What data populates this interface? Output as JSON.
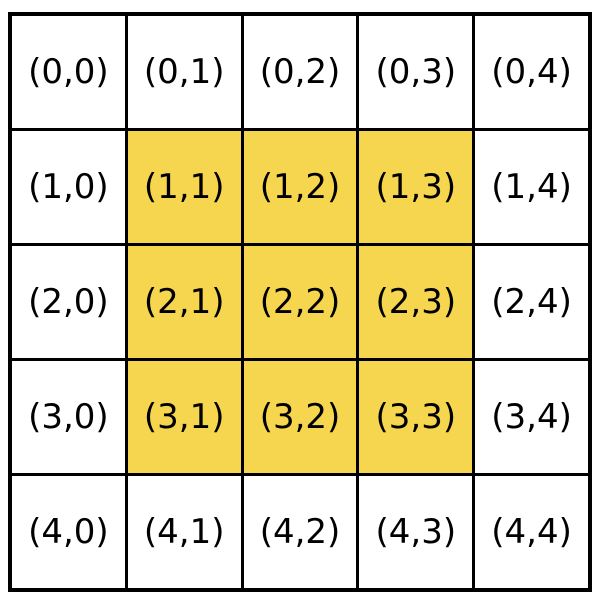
{
  "figure": {
    "description": "5x5 coordinate grid with inner 3x3 block highlighted",
    "rows": 5,
    "cols": 5
  },
  "colors": {
    "highlight": "#F6D54F",
    "cell_background": "#FFFFFF",
    "border": "#000000",
    "text": "#000000"
  },
  "grid": {
    "cells": [
      {
        "label": "(0,0)",
        "row": 0,
        "col": 0,
        "highlighted": false
      },
      {
        "label": "(0,1)",
        "row": 0,
        "col": 1,
        "highlighted": false
      },
      {
        "label": "(0,2)",
        "row": 0,
        "col": 2,
        "highlighted": false
      },
      {
        "label": "(0,3)",
        "row": 0,
        "col": 3,
        "highlighted": false
      },
      {
        "label": "(0,4)",
        "row": 0,
        "col": 4,
        "highlighted": false
      },
      {
        "label": "(1,0)",
        "row": 1,
        "col": 0,
        "highlighted": false
      },
      {
        "label": "(1,1)",
        "row": 1,
        "col": 1,
        "highlighted": true
      },
      {
        "label": "(1,2)",
        "row": 1,
        "col": 2,
        "highlighted": true
      },
      {
        "label": "(1,3)",
        "row": 1,
        "col": 3,
        "highlighted": true
      },
      {
        "label": "(1,4)",
        "row": 1,
        "col": 4,
        "highlighted": false
      },
      {
        "label": "(2,0)",
        "row": 2,
        "col": 0,
        "highlighted": false
      },
      {
        "label": "(2,1)",
        "row": 2,
        "col": 1,
        "highlighted": true
      },
      {
        "label": "(2,2)",
        "row": 2,
        "col": 2,
        "highlighted": true
      },
      {
        "label": "(2,3)",
        "row": 2,
        "col": 3,
        "highlighted": true
      },
      {
        "label": "(2,4)",
        "row": 2,
        "col": 4,
        "highlighted": false
      },
      {
        "label": "(3,0)",
        "row": 3,
        "col": 0,
        "highlighted": false
      },
      {
        "label": "(3,1)",
        "row": 3,
        "col": 1,
        "highlighted": true
      },
      {
        "label": "(3,2)",
        "row": 3,
        "col": 2,
        "highlighted": true
      },
      {
        "label": "(3,3)",
        "row": 3,
        "col": 3,
        "highlighted": true
      },
      {
        "label": "(3,4)",
        "row": 3,
        "col": 4,
        "highlighted": false
      },
      {
        "label": "(4,0)",
        "row": 4,
        "col": 0,
        "highlighted": false
      },
      {
        "label": "(4,1)",
        "row": 4,
        "col": 1,
        "highlighted": false
      },
      {
        "label": "(4,2)",
        "row": 4,
        "col": 2,
        "highlighted": false
      },
      {
        "label": "(4,3)",
        "row": 4,
        "col": 3,
        "highlighted": false
      },
      {
        "label": "(4,4)",
        "row": 4,
        "col": 4,
        "highlighted": false
      }
    ]
  }
}
